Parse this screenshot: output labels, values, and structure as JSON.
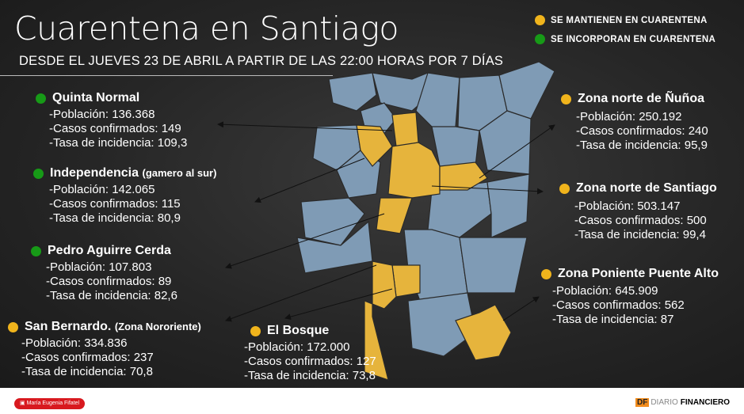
{
  "title": "Cuarentena en Santiago",
  "subtitle": "DESDE EL JUEVES 23 DE ABRIL A PARTIR DE LAS 22:00 HORAS POR 7 DÍAS",
  "legend": [
    {
      "label": "SE MANTIENEN EN CUARENTENA",
      "color": "#f0b41c"
    },
    {
      "label": "SE INCORPORAN EN CUARENTENA",
      "color": "#179a17"
    }
  ],
  "zones": [
    {
      "name": "Quinta Normal",
      "note": "",
      "status": "incorporan",
      "poblacion": "-Población: 136.368",
      "casos": "-Casos confirmados: 149",
      "tasa": "-Tasa de incidencia: 109,3"
    },
    {
      "name": "Independencia",
      "note": "(gamero al sur)",
      "status": "incorporan",
      "poblacion": "-Población: 142.065",
      "casos": "-Casos confirmados: 115",
      "tasa": "-Tasa de incidencia: 80,9"
    },
    {
      "name": "Pedro Aguirre Cerda",
      "note": "",
      "status": "incorporan",
      "poblacion": "-Población: 107.803",
      "casos": "-Casos confirmados: 89",
      "tasa": "-Tasa de incidencia: 82,6"
    },
    {
      "name": "San Bernardo.",
      "note": "(Zona Nororiente)",
      "status": "mantienen",
      "poblacion": "-Población: 334.836",
      "casos": "-Casos confirmados: 237",
      "tasa": "-Tasa de incidencia: 70,8"
    },
    {
      "name": "El Bosque",
      "note": "",
      "status": "mantienen",
      "poblacion": "-Población: 172.000",
      "casos": "-Casos confirmados: 127",
      "tasa": "-Tasa de incidencia: 73,8"
    },
    {
      "name": "Zona norte de Ñuñoa",
      "note": "",
      "status": "mantienen",
      "poblacion": "-Población: 250.192",
      "casos": "-Casos confirmados: 240",
      "tasa": "-Tasa de incidencia: 95,9"
    },
    {
      "name": "Zona norte de Santiago",
      "note": "",
      "status": "mantienen",
      "poblacion": "-Población: 503.147",
      "casos": "-Casos confirmados: 500",
      "tasa": "-Tasa de incidencia: 99,4"
    },
    {
      "name": "Zona Poniente Puente Alto",
      "note": "",
      "status": "mantienen",
      "poblacion": "-Población: 645.909",
      "casos": "-Casos confirmados: 562",
      "tasa": "-Tasa de incidencia: 87"
    }
  ],
  "footer": {
    "author": "María Eugenia Fifatel",
    "brand_df": "DF",
    "brand_diario": "DIARIO",
    "brand_financiero": "FINANCIERO"
  },
  "colors": {
    "quarantine": "#e6b43c",
    "other": "#7f9bb5",
    "background": "#262626"
  }
}
